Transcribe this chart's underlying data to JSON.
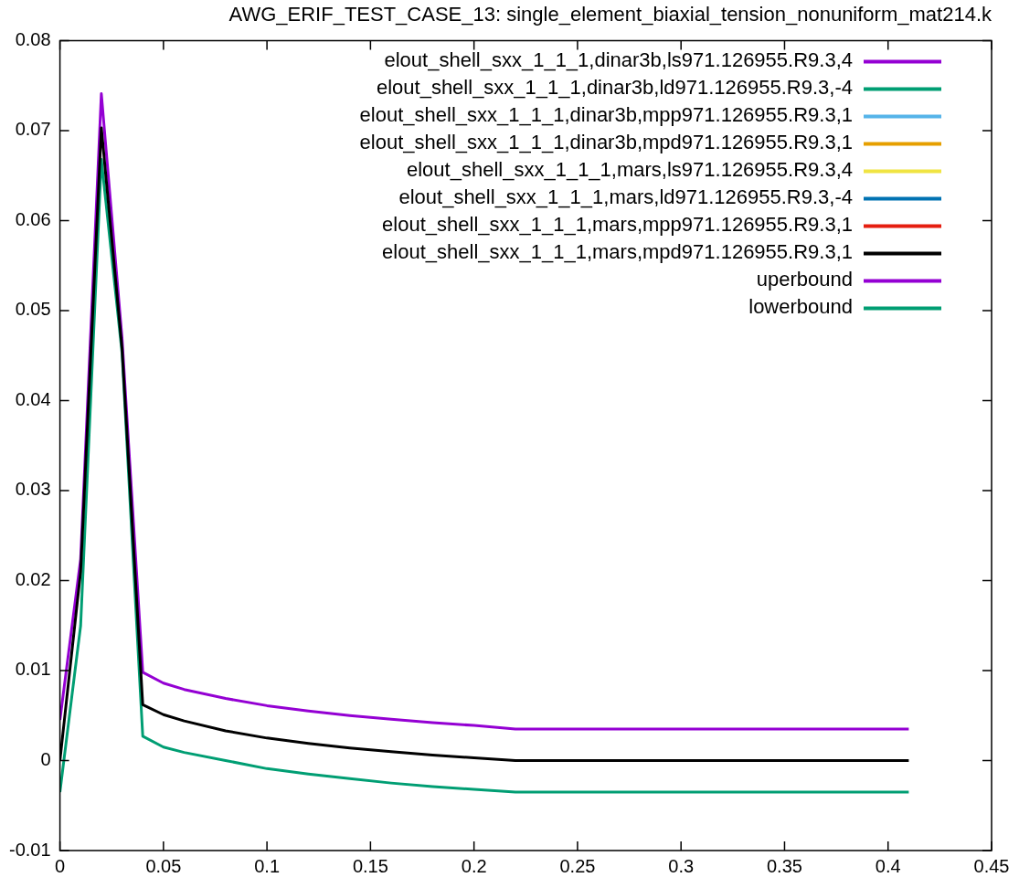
{
  "chart_data": {
    "type": "line",
    "title": "AWG_ERIF_TEST_CASE_13: single_element_biaxial_tension_nonuniform_mat214.k",
    "x": [
      0,
      0.01,
      0.02,
      0.03,
      0.04,
      0.05,
      0.06,
      0.08,
      0.1,
      0.12,
      0.14,
      0.16,
      0.18,
      0.2,
      0.22,
      0.41
    ],
    "series": [
      {
        "name": "elout_shell_sxx_1_1_1,dinar3b,ls971.126955.R9.3,4",
        "color": "#9400d3",
        "values": [
          null,
          null,
          null,
          null,
          null,
          null,
          null,
          null,
          null,
          null,
          null,
          null,
          null,
          null,
          null,
          null
        ]
      },
      {
        "name": "elout_shell_sxx_1_1_1,dinar3b,ld971.126955.R9.3,-4",
        "color": "#009e73",
        "values": [
          null,
          null,
          null,
          null,
          null,
          null,
          null,
          null,
          null,
          null,
          null,
          null,
          null,
          null,
          null,
          null
        ]
      },
      {
        "name": "elout_shell_sxx_1_1_1,dinar3b,mpp971.126955.R9.3,1",
        "color": "#56b4e9",
        "values": [
          null,
          null,
          null,
          null,
          null,
          null,
          null,
          null,
          null,
          null,
          null,
          null,
          null,
          null,
          null,
          null
        ]
      },
      {
        "name": "elout_shell_sxx_1_1_1,dinar3b,mpd971.126955.R9.3,1",
        "color": "#e69f00",
        "values": [
          null,
          null,
          null,
          null,
          null,
          null,
          null,
          null,
          null,
          null,
          null,
          null,
          null,
          null,
          null,
          null
        ]
      },
      {
        "name": "elout_shell_sxx_1_1_1,mars,ls971.126955.R9.3,4",
        "color": "#f0e442",
        "values": [
          null,
          null,
          null,
          null,
          null,
          null,
          null,
          null,
          null,
          null,
          null,
          null,
          null,
          null,
          null,
          null
        ]
      },
      {
        "name": "elout_shell_sxx_1_1_1,mars,ld971.126955.R9.3,-4",
        "color": "#0072b2",
        "values": [
          null,
          null,
          null,
          null,
          null,
          null,
          null,
          null,
          null,
          null,
          null,
          null,
          null,
          null,
          null,
          null
        ]
      },
      {
        "name": "elout_shell_sxx_1_1_1,mars,mpp971.126955.R9.3,1",
        "color": "#e51e10",
        "values": [
          null,
          null,
          null,
          null,
          null,
          null,
          null,
          null,
          null,
          null,
          null,
          null,
          null,
          null,
          null,
          null
        ]
      },
      {
        "name": "elout_shell_sxx_1_1_1,mars,mpd971.126955.R9.3,1",
        "color": "#000000",
        "values": [
          0,
          0.021,
          0.0703,
          0.0458,
          0.0062,
          0.0051,
          0.0044,
          0.0033,
          0.0025,
          0.0019,
          0.0014,
          0.001,
          0.0006,
          0.0003,
          0,
          0
        ]
      },
      {
        "name": "uperbound",
        "color": "#9400d3",
        "values": [
          0.0045,
          0.0224,
          0.0741,
          0.0469,
          0.0098,
          0.0086,
          0.0079,
          0.0069,
          0.0061,
          0.0055,
          0.005,
          0.0046,
          0.0042,
          0.0039,
          0.0035,
          0.0035
        ]
      },
      {
        "name": "lowerbound",
        "color": "#009e73",
        "values": [
          -0.0035,
          0.015,
          0.0668,
          0.0453,
          0.0027,
          0.0015,
          0.0009,
          0,
          -0.0009,
          -0.0015,
          -0.002,
          -0.0025,
          -0.0029,
          -0.0032,
          -0.0035,
          -0.0035
        ]
      }
    ],
    "xlim": [
      0,
      0.45
    ],
    "xticks": [
      0,
      0.05,
      0.1,
      0.15,
      0.2,
      0.25,
      0.3,
      0.35,
      0.4,
      0.45
    ],
    "ylim": [
      -0.01,
      0.08
    ],
    "yticks": [
      -0.01,
      0,
      0.01,
      0.02,
      0.03,
      0.04,
      0.05,
      0.06,
      0.07,
      0.08
    ],
    "legend": "top right",
    "marker": "none"
  }
}
